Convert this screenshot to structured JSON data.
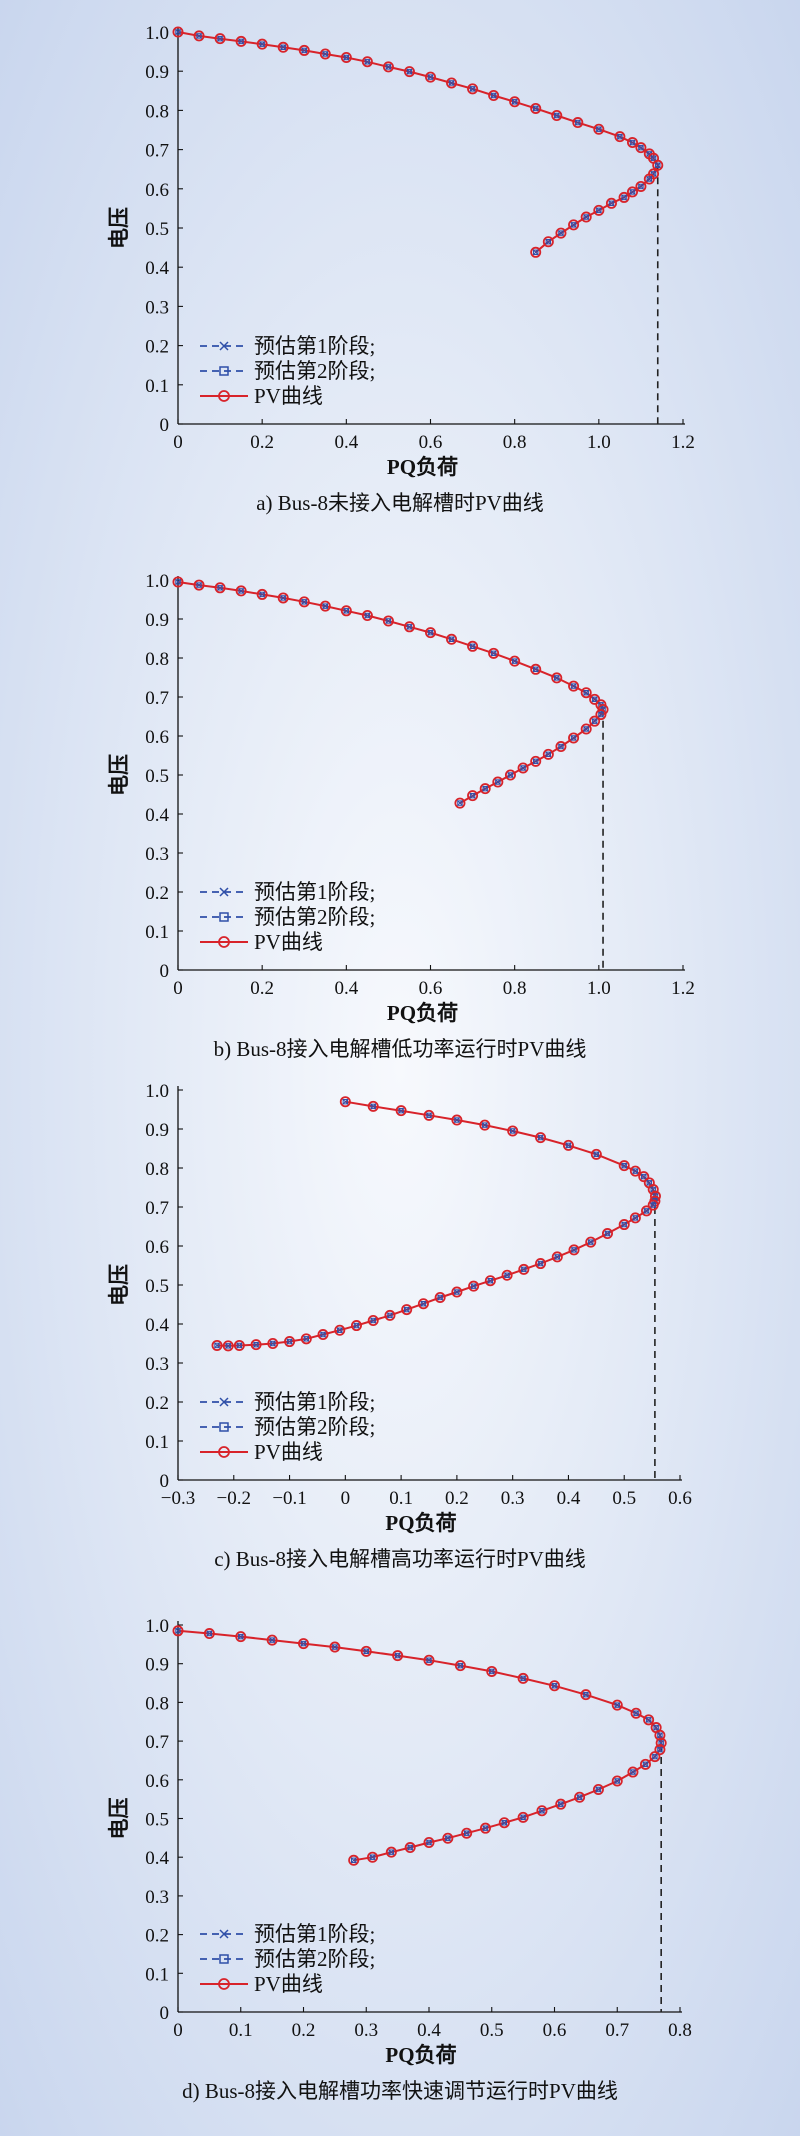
{
  "figure": {
    "legend_labels": [
      "预估第1阶段;",
      "预估第2阶段;",
      "PV曲线"
    ],
    "colors": {
      "stage1": "#2f4fa8",
      "stage2": "#2f4fa8",
      "pv": "#d8232a",
      "axis": "#111111"
    }
  },
  "chart_data": [
    {
      "type": "line",
      "caption": "a) Bus-8未接入电解槽时PV曲线",
      "xlabel": "PQ负荷",
      "ylabel": "电压",
      "xlim": [
        0,
        1.2
      ],
      "ylim": [
        0,
        1.0
      ],
      "xticks": [
        0,
        0.2,
        0.4,
        0.6,
        0.8,
        1.0,
        1.2
      ],
      "xtick_labels": [
        "0",
        "0.2",
        "0.4",
        "0.6",
        "0.8",
        "1.0",
        "1.2"
      ],
      "yticks": [
        0,
        0.1,
        0.2,
        0.3,
        0.4,
        0.5,
        0.6,
        0.7,
        0.8,
        0.9,
        1.0
      ],
      "ytick_labels": [
        "0",
        "0.1",
        "0.2",
        "0.3",
        "0.4",
        "0.5",
        "0.6",
        "0.7",
        "0.8",
        "0.9",
        "1.0"
      ],
      "legend_position": "lower-left",
      "critical_point": {
        "x": 1.14,
        "y": 0.66
      },
      "series": [
        {
          "name": "PV曲线",
          "points": [
            [
              0.0,
              1.0
            ],
            [
              0.05,
              0.99
            ],
            [
              0.1,
              0.983
            ],
            [
              0.15,
              0.976
            ],
            [
              0.2,
              0.969
            ],
            [
              0.25,
              0.961
            ],
            [
              0.3,
              0.953
            ],
            [
              0.35,
              0.944
            ],
            [
              0.4,
              0.935
            ],
            [
              0.45,
              0.924
            ],
            [
              0.5,
              0.911
            ],
            [
              0.55,
              0.899
            ],
            [
              0.6,
              0.885
            ],
            [
              0.65,
              0.87
            ],
            [
              0.7,
              0.855
            ],
            [
              0.75,
              0.838
            ],
            [
              0.8,
              0.822
            ],
            [
              0.85,
              0.805
            ],
            [
              0.9,
              0.787
            ],
            [
              0.95,
              0.769
            ],
            [
              1.0,
              0.752
            ],
            [
              1.05,
              0.733
            ],
            [
              1.08,
              0.718
            ],
            [
              1.1,
              0.705
            ],
            [
              1.12,
              0.689
            ],
            [
              1.13,
              0.678
            ],
            [
              1.14,
              0.66
            ],
            [
              1.13,
              0.638
            ],
            [
              1.12,
              0.625
            ],
            [
              1.1,
              0.606
            ],
            [
              1.08,
              0.592
            ],
            [
              1.06,
              0.578
            ],
            [
              1.03,
              0.563
            ],
            [
              1.0,
              0.545
            ],
            [
              0.97,
              0.528
            ],
            [
              0.94,
              0.508
            ],
            [
              0.91,
              0.487
            ],
            [
              0.88,
              0.465
            ],
            [
              0.85,
              0.438
            ]
          ]
        }
      ]
    },
    {
      "type": "line",
      "caption": "b) Bus-8接入电解槽低功率运行时PV曲线",
      "xlabel": "PQ负荷",
      "ylabel": "电压",
      "xlim": [
        0,
        1.2
      ],
      "ylim": [
        0,
        1.0
      ],
      "xticks": [
        0,
        0.2,
        0.4,
        0.6,
        0.8,
        1.0,
        1.2
      ],
      "xtick_labels": [
        "0",
        "0.2",
        "0.4",
        "0.6",
        "0.8",
        "1.0",
        "1.2"
      ],
      "yticks": [
        0,
        0.1,
        0.2,
        0.3,
        0.4,
        0.5,
        0.6,
        0.7,
        0.8,
        0.9,
        1.0
      ],
      "ytick_labels": [
        "0",
        "0.1",
        "0.2",
        "0.3",
        "0.4",
        "0.5",
        "0.6",
        "0.7",
        "0.8",
        "0.9",
        "1.0"
      ],
      "legend_position": "lower-left",
      "critical_point": {
        "x": 1.01,
        "y": 0.67
      },
      "series": [
        {
          "name": "PV曲线",
          "points": [
            [
              0.0,
              0.995
            ],
            [
              0.05,
              0.987
            ],
            [
              0.1,
              0.98
            ],
            [
              0.15,
              0.972
            ],
            [
              0.2,
              0.963
            ],
            [
              0.25,
              0.954
            ],
            [
              0.3,
              0.944
            ],
            [
              0.35,
              0.933
            ],
            [
              0.4,
              0.921
            ],
            [
              0.45,
              0.909
            ],
            [
              0.5,
              0.895
            ],
            [
              0.55,
              0.88
            ],
            [
              0.6,
              0.865
            ],
            [
              0.65,
              0.848
            ],
            [
              0.7,
              0.83
            ],
            [
              0.75,
              0.812
            ],
            [
              0.8,
              0.792
            ],
            [
              0.85,
              0.771
            ],
            [
              0.9,
              0.749
            ],
            [
              0.94,
              0.728
            ],
            [
              0.97,
              0.711
            ],
            [
              0.99,
              0.694
            ],
            [
              1.005,
              0.68
            ],
            [
              1.01,
              0.668
            ],
            [
              1.005,
              0.655
            ],
            [
              0.99,
              0.638
            ],
            [
              0.97,
              0.618
            ],
            [
              0.94,
              0.595
            ],
            [
              0.91,
              0.573
            ],
            [
              0.88,
              0.553
            ],
            [
              0.85,
              0.535
            ],
            [
              0.82,
              0.518
            ],
            [
              0.79,
              0.5
            ],
            [
              0.76,
              0.482
            ],
            [
              0.73,
              0.465
            ],
            [
              0.7,
              0.447
            ],
            [
              0.67,
              0.428
            ]
          ]
        }
      ]
    },
    {
      "type": "line",
      "caption": "c) Bus-8接入电解槽高功率运行时PV曲线",
      "xlabel": "PQ负荷",
      "ylabel": "电压",
      "xlim": [
        -0.3,
        0.6
      ],
      "ylim": [
        0,
        1.0
      ],
      "xticks": [
        -0.3,
        -0.2,
        -0.1,
        0,
        0.1,
        0.2,
        0.3,
        0.4,
        0.5,
        0.6
      ],
      "xtick_labels": [
        "−0.3",
        "−0.2",
        "−0.1",
        "0",
        "0.1",
        "0.2",
        "0.3",
        "0.4",
        "0.5",
        "0.6"
      ],
      "yticks": [
        0,
        0.1,
        0.2,
        0.3,
        0.4,
        0.5,
        0.6,
        0.7,
        0.8,
        0.9,
        1.0
      ],
      "ytick_labels": [
        "0",
        "0.1",
        "0.2",
        "0.3",
        "0.4",
        "0.5",
        "0.6",
        "0.7",
        "0.8",
        "0.9",
        "1.0"
      ],
      "legend_position": "lower-left",
      "critical_point": {
        "x": 0.555,
        "y": 0.7
      },
      "series": [
        {
          "name": "PV曲线",
          "points": [
            [
              0.0,
              0.97
            ],
            [
              0.05,
              0.958
            ],
            [
              0.1,
              0.947
            ],
            [
              0.15,
              0.935
            ],
            [
              0.2,
              0.923
            ],
            [
              0.25,
              0.91
            ],
            [
              0.3,
              0.895
            ],
            [
              0.35,
              0.878
            ],
            [
              0.4,
              0.858
            ],
            [
              0.45,
              0.835
            ],
            [
              0.5,
              0.806
            ],
            [
              0.52,
              0.792
            ],
            [
              0.535,
              0.778
            ],
            [
              0.545,
              0.762
            ],
            [
              0.552,
              0.745
            ],
            [
              0.556,
              0.728
            ],
            [
              0.555,
              0.715
            ],
            [
              0.552,
              0.705
            ],
            [
              0.54,
              0.69
            ],
            [
              0.52,
              0.672
            ],
            [
              0.5,
              0.655
            ],
            [
              0.47,
              0.632
            ],
            [
              0.44,
              0.61
            ],
            [
              0.41,
              0.59
            ],
            [
              0.38,
              0.572
            ],
            [
              0.35,
              0.555
            ],
            [
              0.32,
              0.54
            ],
            [
              0.29,
              0.525
            ],
            [
              0.26,
              0.511
            ],
            [
              0.23,
              0.497
            ],
            [
              0.2,
              0.482
            ],
            [
              0.17,
              0.468
            ],
            [
              0.14,
              0.452
            ],
            [
              0.11,
              0.437
            ],
            [
              0.08,
              0.422
            ],
            [
              0.05,
              0.409
            ],
            [
              0.02,
              0.396
            ],
            [
              -0.01,
              0.384
            ],
            [
              -0.04,
              0.373
            ],
            [
              -0.07,
              0.362
            ],
            [
              -0.1,
              0.355
            ],
            [
              -0.13,
              0.35
            ],
            [
              -0.16,
              0.347
            ],
            [
              -0.19,
              0.345
            ],
            [
              -0.21,
              0.344
            ],
            [
              -0.23,
              0.345
            ]
          ]
        }
      ]
    },
    {
      "type": "line",
      "caption": "d) Bus-8接入电解槽功率快速调节运行时PV曲线",
      "xlabel": "PQ负荷",
      "ylabel": "电压",
      "xlim": [
        0,
        0.8
      ],
      "ylim": [
        0,
        1.0
      ],
      "xticks": [
        0,
        0.1,
        0.2,
        0.3,
        0.4,
        0.5,
        0.6,
        0.7,
        0.8
      ],
      "xtick_labels": [
        "0",
        "0.1",
        "0.2",
        "0.3",
        "0.4",
        "0.5",
        "0.6",
        "0.7",
        "0.8"
      ],
      "yticks": [
        0,
        0.1,
        0.2,
        0.3,
        0.4,
        0.5,
        0.6,
        0.7,
        0.8,
        0.9,
        1.0
      ],
      "ytick_labels": [
        "0",
        "0.1",
        "0.2",
        "0.3",
        "0.4",
        "0.5",
        "0.6",
        "0.7",
        "0.8",
        "0.9",
        "1.0"
      ],
      "legend_position": "lower-left",
      "critical_point": {
        "x": 0.77,
        "y": 0.69
      },
      "series": [
        {
          "name": "PV曲线",
          "points": [
            [
              0.0,
              0.985
            ],
            [
              0.05,
              0.978
            ],
            [
              0.1,
              0.97
            ],
            [
              0.15,
              0.961
            ],
            [
              0.2,
              0.952
            ],
            [
              0.25,
              0.943
            ],
            [
              0.3,
              0.932
            ],
            [
              0.35,
              0.921
            ],
            [
              0.4,
              0.909
            ],
            [
              0.45,
              0.895
            ],
            [
              0.5,
              0.88
            ],
            [
              0.55,
              0.862
            ],
            [
              0.6,
              0.843
            ],
            [
              0.65,
              0.82
            ],
            [
              0.7,
              0.793
            ],
            [
              0.73,
              0.772
            ],
            [
              0.75,
              0.755
            ],
            [
              0.762,
              0.735
            ],
            [
              0.768,
              0.715
            ],
            [
              0.77,
              0.695
            ],
            [
              0.768,
              0.678
            ],
            [
              0.76,
              0.66
            ],
            [
              0.745,
              0.64
            ],
            [
              0.725,
              0.62
            ],
            [
              0.7,
              0.597
            ],
            [
              0.67,
              0.575
            ],
            [
              0.64,
              0.555
            ],
            [
              0.61,
              0.537
            ],
            [
              0.58,
              0.52
            ],
            [
              0.55,
              0.503
            ],
            [
              0.52,
              0.489
            ],
            [
              0.49,
              0.475
            ],
            [
              0.46,
              0.462
            ],
            [
              0.43,
              0.449
            ],
            [
              0.4,
              0.438
            ],
            [
              0.37,
              0.425
            ],
            [
              0.34,
              0.413
            ],
            [
              0.31,
              0.4
            ],
            [
              0.28,
              0.392
            ]
          ]
        }
      ]
    }
  ]
}
